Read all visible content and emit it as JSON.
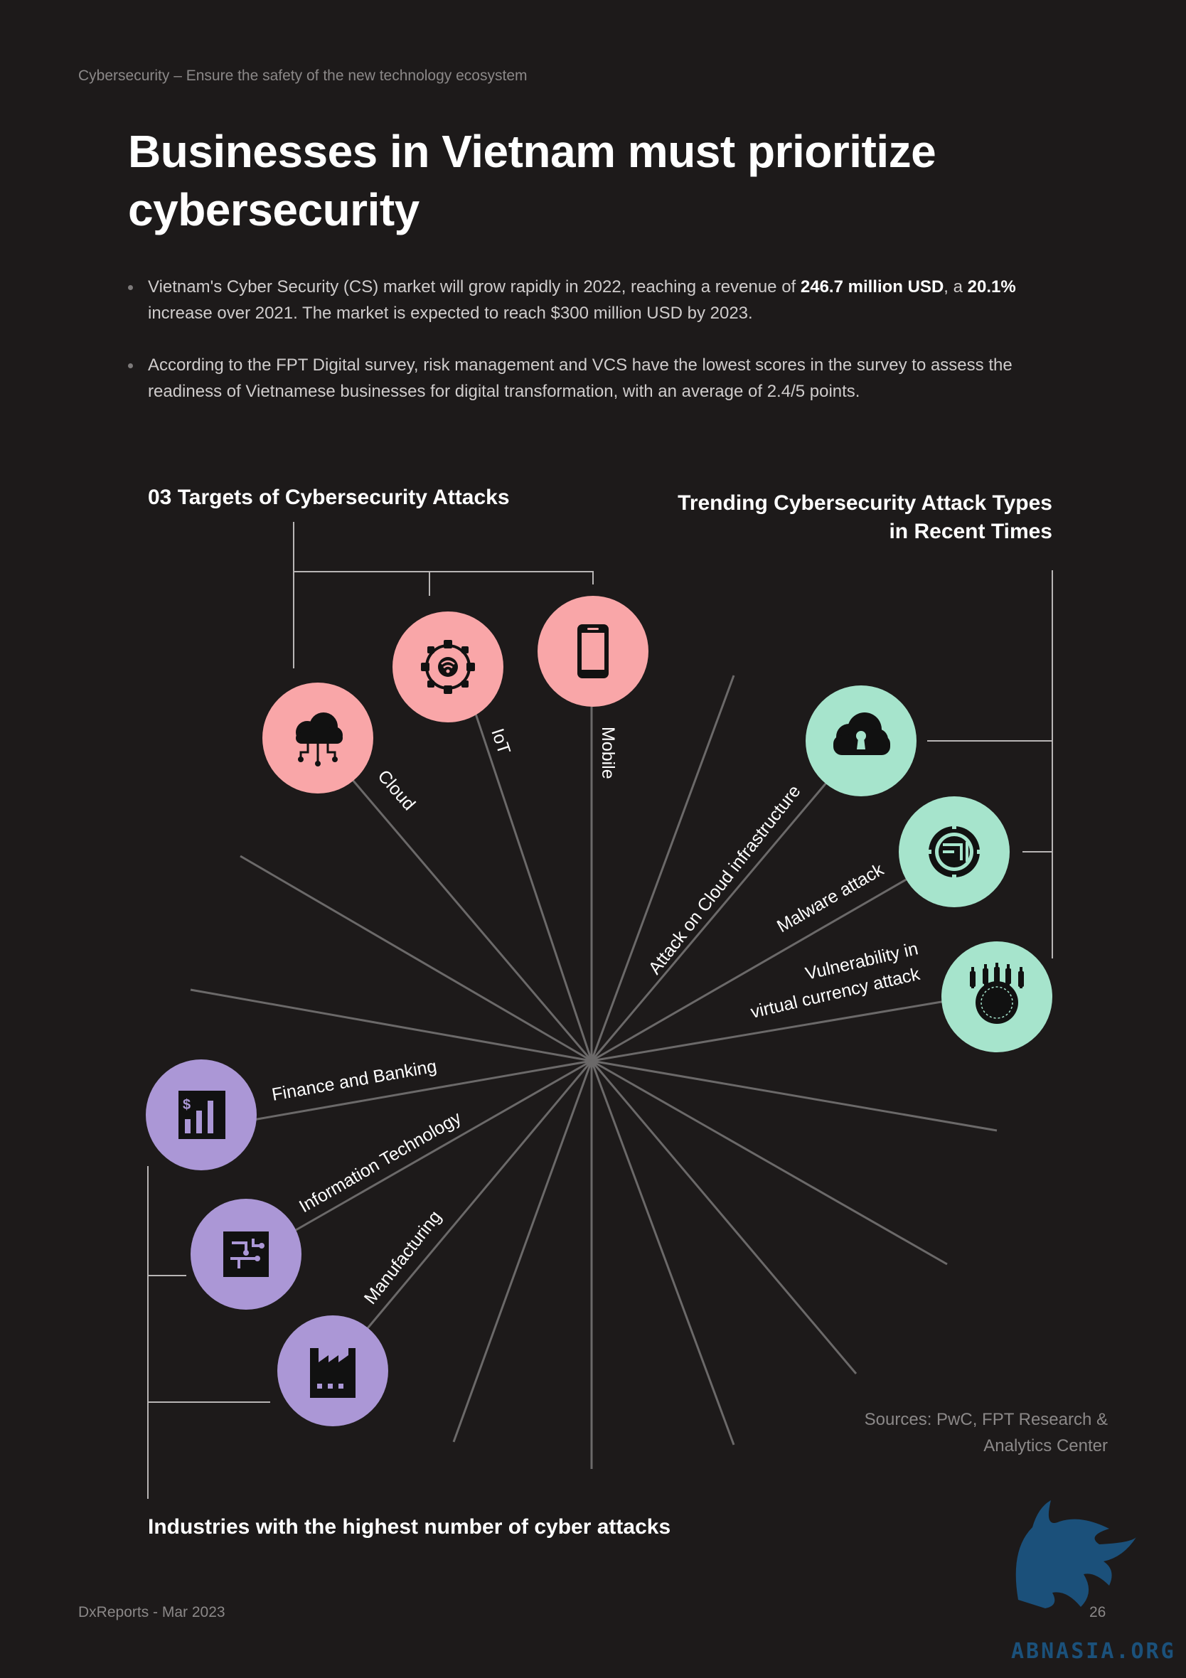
{
  "header": {
    "running_title": "Cybersecurity – Ensure the safety of the new technology ecosystem",
    "title_line1": "Businesses in Vietnam must prioritize",
    "title_line2": "cybersecurity"
  },
  "bullets": [
    {
      "t1": "Vietnam's Cyber Security (CS) market will grow rapidly in 2022, reaching a revenue of ",
      "b1": "246.7 million USD",
      "t2": ", a ",
      "b2": "20.1%",
      "t3": " increase over 2021. The market is expected to reach $300 million USD by 2023."
    },
    {
      "t1": "According to the FPT Digital survey, risk management and VCS have the lowest scores in the survey to assess the readiness of Vietnamese businesses for digital transformation, with an average of 2.4/5 points."
    }
  ],
  "sections": {
    "targets": "03 Targets of Cybersecurity Attacks",
    "trending_line1": "Trending Cybersecurity Attack Types",
    "trending_line2": "in Recent Times",
    "industries": "Industries with the highest number of cyber attacks"
  },
  "targets": [
    {
      "label": "Cloud",
      "icon": "cloud-network-icon",
      "color": "#f9a6a8"
    },
    {
      "label": "IoT",
      "icon": "iot-network-icon",
      "color": "#f9a6a8"
    },
    {
      "label": "Mobile",
      "icon": "mobile-phone-icon",
      "color": "#f9a6a8"
    }
  ],
  "attack_types": [
    {
      "label": "Attack on Cloud infrastructure",
      "icon": "cloud-lock-icon",
      "color": "#a6e4cc"
    },
    {
      "label": "Malware attack",
      "icon": "malware-chip-icon",
      "color": "#a6e4cc"
    },
    {
      "label_line1": "Vulnerability in",
      "label_line2": "virtual currency attack",
      "icon": "crypto-coin-icon",
      "color": "#a6e4cc"
    }
  ],
  "industries": [
    {
      "label": "Finance and Banking",
      "icon": "finance-chart-icon",
      "color": "#ab97d6"
    },
    {
      "label": "Information Technology",
      "icon": "circuit-board-icon",
      "color": "#ab97d6"
    },
    {
      "label": "Manufacturing",
      "icon": "factory-icon",
      "color": "#ab97d6"
    }
  ],
  "sources_line1": "Sources: PwC, FPT Research &",
  "sources_line2": "Analytics Center",
  "footer": {
    "left": "DxReports - Mar 2023",
    "page": "26",
    "watermark": "ABNASIA.ORG"
  }
}
